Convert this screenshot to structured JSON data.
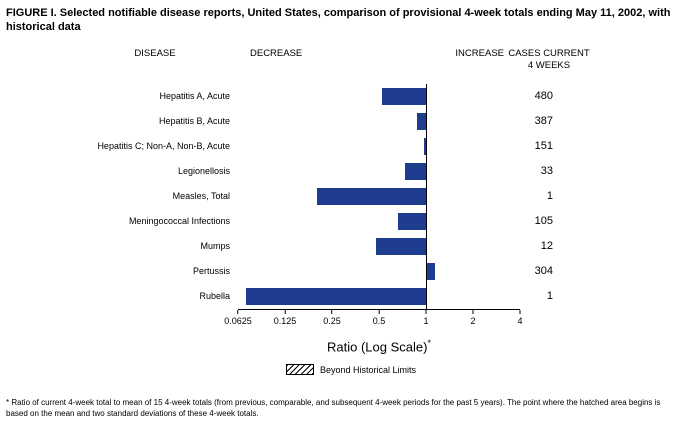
{
  "title": "FIGURE I. Selected notifiable disease reports, United States, comparison of provisional 4-week totals ending May 11, 2002, with historical data",
  "headers": {
    "disease": "DISEASE",
    "decrease": "DECREASE",
    "increase": "INCREASE",
    "cases_line1": "CASES CURRENT",
    "cases_line2": "4 WEEKS"
  },
  "xlabel": "Ratio (Log Scale)",
  "xlabel_note_marker": "*",
  "legend_label": "Beyond Historical Limits",
  "footnote": "* Ratio of current 4-week total to mean of 15 4-week totals (from previous, comparable, and subsequent 4-week periods for the past 5 years). The point where the hatched area begins is based on the mean and two standard deviations of these 4-week totals.",
  "colors": {
    "bar": "#1F3D8F"
  },
  "chart_data": {
    "type": "bar",
    "orientation": "horizontal",
    "scale": "log2",
    "title": "Selected notifiable disease reports, comparison of provisional 4-week totals ending May 11, 2002, with historical data",
    "xlabel": "Ratio (Log Scale)*",
    "xlim": [
      0.0625,
      4
    ],
    "baseline": 1,
    "ticks": [
      0.0625,
      0.125,
      0.25,
      0.5,
      1,
      2,
      4
    ],
    "tick_labels": [
      "0.0625",
      "0.125",
      "0.25",
      "0.5",
      "1",
      "2",
      "4"
    ],
    "legend": [
      {
        "label": "Beyond Historical Limits",
        "style": "hatched"
      }
    ],
    "rows": [
      {
        "disease": "Hepatitis A, Acute",
        "ratio": 0.52,
        "cases": 480
      },
      {
        "disease": "Hepatitis B, Acute",
        "ratio": 0.88,
        "cases": 387
      },
      {
        "disease": "Hepatitis C; Non-A, Non-B, Acute",
        "ratio": 0.97,
        "cases": 151
      },
      {
        "disease": "Legionellosis",
        "ratio": 0.73,
        "cases": 33
      },
      {
        "disease": "Measles, Total",
        "ratio": 0.2,
        "cases": 1
      },
      {
        "disease": "Meningococcal Infections",
        "ratio": 0.66,
        "cases": 105
      },
      {
        "disease": "Mumps",
        "ratio": 0.48,
        "cases": 12
      },
      {
        "disease": "Pertussis",
        "ratio": 1.14,
        "cases": 304
      },
      {
        "disease": "Rubella",
        "ratio": 0.07,
        "cases": 1
      }
    ]
  }
}
